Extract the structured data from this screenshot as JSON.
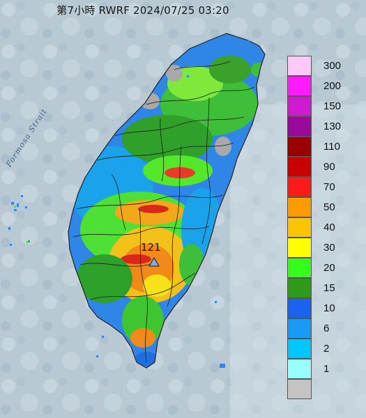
{
  "header": {
    "title": "第7小時  RWRF 2024/07/25 03:20"
  },
  "map": {
    "strait_label": "Formosa Strait",
    "peak_value": "121"
  },
  "legend": [
    {
      "label": "300",
      "color": "#ffc8f8"
    },
    {
      "label": "200",
      "color": "#ff1aff"
    },
    {
      "label": "150",
      "color": "#d01ad0"
    },
    {
      "label": "130",
      "color": "#9a0a9a"
    },
    {
      "label": "110",
      "color": "#9a0000"
    },
    {
      "label": "90",
      "color": "#c80000"
    },
    {
      "label": "70",
      "color": "#ff1a1a"
    },
    {
      "label": "50",
      "color": "#ff9a00"
    },
    {
      "label": "40",
      "color": "#ffc400"
    },
    {
      "label": "30",
      "color": "#ffff00"
    },
    {
      "label": "20",
      "color": "#33ff1a"
    },
    {
      "label": "15",
      "color": "#2f9a1a"
    },
    {
      "label": "10",
      "color": "#1a62f0"
    },
    {
      "label": "6",
      "color": "#1a9af5"
    },
    {
      "label": "2",
      "color": "#00c8ff"
    },
    {
      "label": "1",
      "color": "#9affff"
    },
    {
      "label": "",
      "color": "#c4c4c4"
    }
  ]
}
